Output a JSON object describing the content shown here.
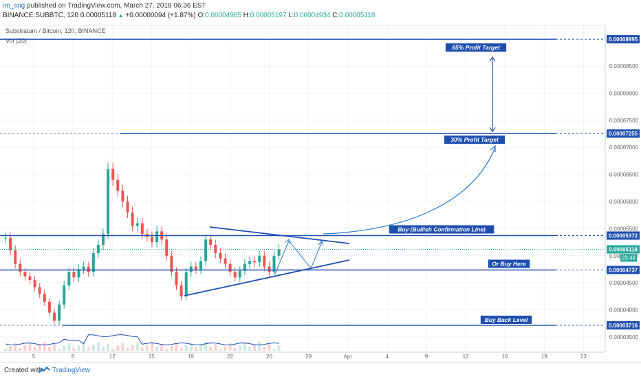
{
  "header": {
    "user": "im_sng",
    "published_text": "published on TradingView.com, March 27, 2018 06:36 EST",
    "ohlc_line": {
      "symbol": "BINANCE:SUBBTC, 120",
      "last": "0.00005118",
      "change_arrow": "▲",
      "change": "+0.00000094 (+1.87%)",
      "open_label": "O:",
      "open": "0.00004965",
      "high_label": "H:",
      "high": "0.00005197",
      "low_label": "L:",
      "low": "0.00004934",
      "close_label": "C:",
      "close": "0.00005118"
    }
  },
  "chart_meta": {
    "symbol_title": "Substratum / Bitcoin, 120, BINANCE",
    "volume_label": "Vol (20)"
  },
  "footer": {
    "created_with": "Created with",
    "brand": "TradingView",
    "logo_icon": "tradingview-cloud-icon"
  },
  "colors": {
    "up": "#26a69a",
    "down": "#ef5350",
    "drawing": "#1e4fb0",
    "label_bg": "#1e4fb0",
    "current_price": "#26a69a",
    "volume_line": "#1e4fb0"
  },
  "chart_data": {
    "type": "candlestick",
    "x_tick_labels": [
      "5",
      "8",
      "12",
      "15",
      "19",
      "22",
      "26",
      "29",
      "Apr",
      "4",
      "9",
      "12",
      "16",
      "19",
      "23"
    ],
    "y_axis": {
      "tick_labels": [
        "0.00009000",
        "0.00008500",
        "0.00008000",
        "0.00007500",
        "0.00007000",
        "0.00006500",
        "0.00006000",
        "0.00005500",
        "0.00005000",
        "0.00004500",
        "0.00004000",
        "0.00003500"
      ],
      "range": [
        3.22e-05,
        9.25e-05
      ],
      "scale": "linear",
      "side": "right"
    },
    "price_labels": [
      {
        "text": "0.00008995",
        "value": 8.995e-05,
        "kind": "level"
      },
      {
        "text": "0.00007255",
        "value": 7.255e-05,
        "kind": "level"
      },
      {
        "text": "0.00005372",
        "value": 5.372e-05,
        "kind": "level"
      },
      {
        "text": "0.00005118",
        "value": 5.118e-05,
        "kind": "current",
        "countdown": "23:49"
      },
      {
        "text": "0.00004737",
        "value": 4.737e-05,
        "kind": "level"
      },
      {
        "text": "0.00003716",
        "value": 3.716e-05,
        "kind": "level"
      }
    ],
    "annotations": [
      {
        "text": "65% Profit Target",
        "value": 8.995e-05
      },
      {
        "text": "30% Profit Target",
        "value": 7.255e-05
      },
      {
        "text": "Buy (Bullish Confirmation Line)",
        "value": 5.372e-05
      },
      {
        "text": "Or Buy Here",
        "value": 4.737e-05
      },
      {
        "text": "Buy Back Level",
        "value": 3.716e-05
      }
    ],
    "candles_close_path": [
      5.33e-05,
      5.1e-05,
      4.85e-05,
      4.7e-05,
      4.62e-05,
      4.55e-05,
      4.42e-05,
      4.3e-05,
      4.15e-05,
      3.95e-05,
      3.8e-05,
      4.1e-05,
      4.45e-05,
      4.7e-05,
      4.6e-05,
      4.75e-05,
      4.8e-05,
      4.7e-05,
      5.05e-05,
      5.2e-05,
      5.4e-05,
      6.6e-05,
      6.4e-05,
      6.2e-05,
      6e-05,
      5.8e-05,
      5.55e-05,
      5.6e-05,
      5.4e-05,
      5.35e-05,
      5.25e-05,
      5.45e-05,
      5.3e-05,
      5e-05,
      4.7e-05,
      4.45e-05,
      4.25e-05,
      4.7e-05,
      4.8e-05,
      4.75e-05,
      4.9e-05,
      5.3e-05,
      5.2e-05,
      5.05e-05,
      4.95e-05,
      4.85e-05,
      4.7e-05,
      4.6e-05,
      4.72e-05,
      4.85e-05,
      4.9e-05,
      4.88e-05,
      5e-05,
      4.8e-05,
      4.7e-05,
      5e-05,
      5.12e-05
    ]
  }
}
